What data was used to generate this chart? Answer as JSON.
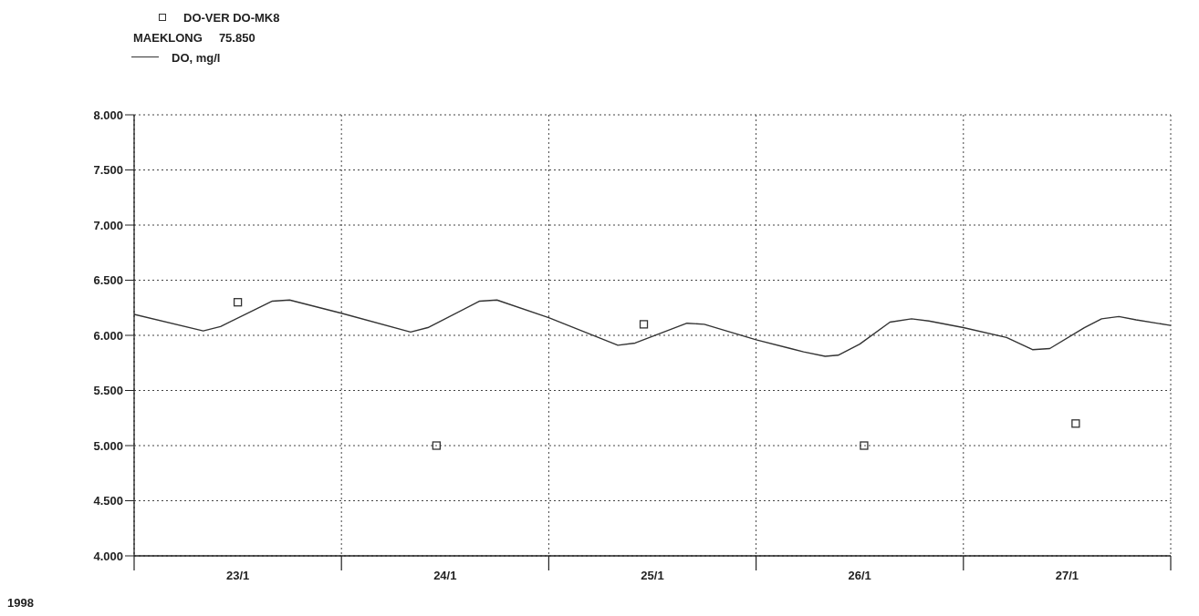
{
  "chart_data": {
    "type": "line",
    "subtitle": "MAEKLONG     75.850",
    "xlim": [
      "1998-01-23",
      "1998-01-28"
    ],
    "xticks": [
      {
        "value": "1998-01-23",
        "label": null
      },
      {
        "value": "1998-01-23T12:00",
        "label": "23/1"
      },
      {
        "value": "1998-01-24",
        "label": null
      },
      {
        "value": "1998-01-24T12:00",
        "label": "24/1"
      },
      {
        "value": "1998-01-25",
        "label": null
      },
      {
        "value": "1998-01-25T12:00",
        "label": "25/1"
      },
      {
        "value": "1998-01-26",
        "label": null
      },
      {
        "value": "1998-01-26T12:00",
        "label": "26/1"
      },
      {
        "value": "1998-01-27",
        "label": null
      },
      {
        "value": "1998-01-27T12:00",
        "label": "27/1"
      },
      {
        "value": "1998-01-28",
        "label": null
      }
    ],
    "ylim": [
      4,
      8
    ],
    "yticks": [
      {
        "value": 4,
        "label": "4.000"
      },
      {
        "value": 4.5,
        "label": "4.500"
      },
      {
        "value": 5,
        "label": "5.000"
      },
      {
        "value": 5.5,
        "label": "5.500"
      },
      {
        "value": 6,
        "label": "6.000"
      },
      {
        "value": 6.5,
        "label": "6.500"
      },
      {
        "value": 7,
        "label": "7.000"
      },
      {
        "value": 7.5,
        "label": "7.500"
      },
      {
        "value": 8,
        "label": "8.000"
      }
    ],
    "grid": true,
    "legend": "top left",
    "annotations": [
      "1998"
    ],
    "series": [
      {
        "name": "DO-VER DO-MK8",
        "type": "scatter",
        "marker": "square",
        "color": "#333333",
        "x": [
          "1998-01-23T12:00",
          "1998-01-24T11:00",
          "1998-01-25T11:00",
          "1998-01-26T12:30",
          "1998-01-27T13:00"
        ],
        "values": [
          6.3,
          5.0,
          6.1,
          5.0,
          5.2
        ]
      },
      {
        "name": "DO, mg/l",
        "marker": "none",
        "line_style": "solid",
        "color": "#333333",
        "x": [
          "1998-01-23",
          "1998-01-23T08:00",
          "1998-01-23T10:00",
          "1998-01-23T16:00",
          "1998-01-23T18:00",
          "1998-01-24",
          "1998-01-24T08:00",
          "1998-01-24T10:00",
          "1998-01-24T16:00",
          "1998-01-24T18:00",
          "1998-01-25",
          "1998-01-25T08:00",
          "1998-01-25T10:00",
          "1998-01-25T16:00",
          "1998-01-25T18:00",
          "1998-01-26",
          "1998-01-26T04:00",
          "1998-01-26T05:30",
          "1998-01-26T08:00",
          "1998-01-26T09:30",
          "1998-01-26T12:00",
          "1998-01-26T15:30",
          "1998-01-26T18:00",
          "1998-01-26T20:00",
          "1998-01-27",
          "1998-01-27T05:00",
          "1998-01-27T08:00",
          "1998-01-27T10:00",
          "1998-01-27T14:00",
          "1998-01-27T16:00",
          "1998-01-27T18:00",
          "1998-01-27T20:00",
          "1998-01-28"
        ],
        "values": [
          6.19,
          6.04,
          6.08,
          6.31,
          6.32,
          6.2,
          6.03,
          6.07,
          6.31,
          6.32,
          6.16,
          5.91,
          5.93,
          6.11,
          6.1,
          5.96,
          5.88,
          5.85,
          5.81,
          5.82,
          5.92,
          6.12,
          6.15,
          6.13,
          6.07,
          5.98,
          5.87,
          5.88,
          6.07,
          6.15,
          6.17,
          6.14,
          6.09
        ]
      }
    ]
  }
}
